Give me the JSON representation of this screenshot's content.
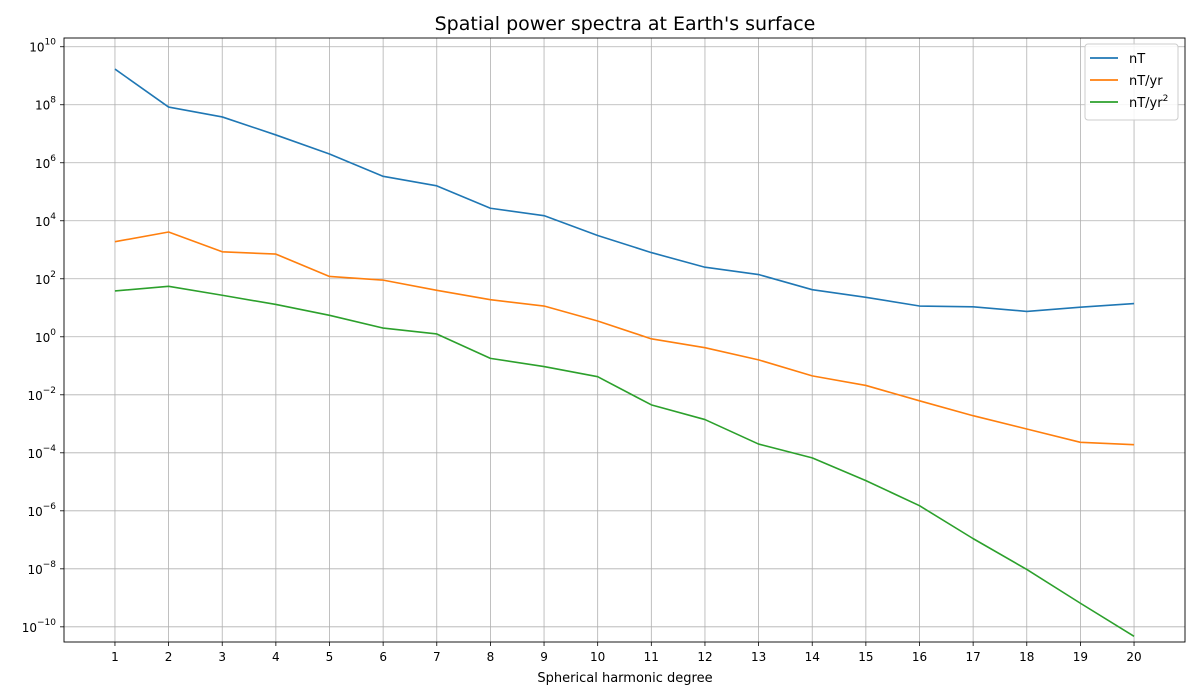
{
  "chart_data": {
    "type": "line",
    "title": "Spatial power spectra at Earth's surface",
    "xlabel": "Spherical harmonic degree",
    "ylabel": "",
    "yscale": "log",
    "ylim": [
      3e-11,
      20000000000.0
    ],
    "xlim": [
      0.05,
      20.95
    ],
    "grid": true,
    "legend_position": "top-right",
    "x": [
      1,
      2,
      3,
      4,
      5,
      6,
      7,
      8,
      9,
      10,
      11,
      12,
      13,
      14,
      15,
      16,
      17,
      18,
      19,
      20
    ],
    "x_tick_labels": [
      "1",
      "2",
      "3",
      "4",
      "5",
      "6",
      "7",
      "8",
      "9",
      "10",
      "11",
      "12",
      "13",
      "14",
      "15",
      "16",
      "17",
      "18",
      "19",
      "20"
    ],
    "y_ticks": [
      {
        "value": 10000000000.0,
        "base": "10",
        "exp": "10"
      },
      {
        "value": 100000000.0,
        "base": "10",
        "exp": "8"
      },
      {
        "value": 1000000.0,
        "base": "10",
        "exp": "6"
      },
      {
        "value": 10000.0,
        "base": "10",
        "exp": "4"
      },
      {
        "value": 100.0,
        "base": "10",
        "exp": "2"
      },
      {
        "value": 1.0,
        "base": "10",
        "exp": "0"
      },
      {
        "value": 0.01,
        "base": "10",
        "exp": "−2"
      },
      {
        "value": 0.0001,
        "base": "10",
        "exp": "−4"
      },
      {
        "value": 1e-06,
        "base": "10",
        "exp": "−6"
      },
      {
        "value": 1e-08,
        "base": "10",
        "exp": "−8"
      },
      {
        "value": 1e-10,
        "base": "10",
        "exp": "−10"
      }
    ],
    "series": [
      {
        "name": "nT",
        "color": "#1f77b4",
        "values": [
          1700000000.0,
          83000000.0,
          38000000.0,
          9100000.0,
          2000000.0,
          340000.0,
          160000.0,
          27000.0,
          15000.0,
          3100.0,
          800.0,
          250.0,
          140.0,
          42,
          23,
          11.5,
          10.8,
          7.5,
          10.5,
          14.0
        ]
      },
      {
        "name": "nT/yr",
        "color": "#ff7f0e",
        "values": [
          1900,
          4100,
          850,
          710,
          120,
          90,
          40,
          19,
          11.5,
          3.5,
          0.85,
          0.42,
          0.16,
          0.045,
          0.021,
          0.0062,
          0.0019,
          0.00066,
          0.00023,
          0.00019
        ]
      },
      {
        "name": "nT/yr",
        "name_sup": "2",
        "color": "#2ca02c",
        "values": [
          38,
          55,
          27,
          13,
          5.5,
          2.0,
          1.25,
          0.18,
          0.094,
          0.042,
          0.0045,
          0.0014,
          0.0002,
          6.7e-05,
          1.1e-05,
          1.5e-06,
          1.1e-07,
          9.5e-09,
          6.5e-10,
          4.7e-11
        ]
      }
    ]
  }
}
